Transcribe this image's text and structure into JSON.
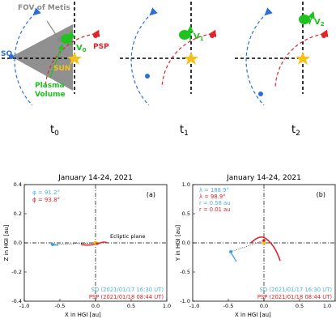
{
  "colors": {
    "sun": "#f2c21b",
    "so": "#2a6fd6",
    "psp": "#e0242a",
    "plasma": "#1fc21f",
    "fov": "#8a8a8a",
    "axis": "#000000"
  },
  "top": {
    "fov_label": "FOV of Metis",
    "so_label": "SO",
    "psp_label": "PSP",
    "sun_label": "SUN",
    "plasma_label_1": "Plasma",
    "plasma_label_2": "Volume",
    "v0_label": "V",
    "v0_sub": "0",
    "v1_label": "V",
    "v1_sub": "1",
    "v2_label": "V",
    "v2_sub": "2",
    "time_labels": [
      {
        "main": "t",
        "sub": "0"
      },
      {
        "main": "t",
        "sub": "1"
      },
      {
        "main": "t",
        "sub": "2"
      }
    ]
  },
  "panel_a": {
    "title": "January 14-24, 2021",
    "letter": "(a)",
    "phi_label": "φ = 91.2°",
    "theta_label": "ϕ = 93.8°",
    "ecliptic_label": "Ecliptic plane",
    "xlabel": "X in HGI [au]",
    "ylabel": "Z in HGI [au]",
    "xticks": [
      "-1.0",
      "-0.5",
      "0.0",
      "0.5",
      "1.0"
    ],
    "yticks": [
      "-0.4",
      "-0.2",
      "0.0",
      "0.2",
      "0.4"
    ],
    "legend_so": "SO (2021/01/17 16:30 UT)",
    "legend_psp": "PSP (2021/01/18 08:44 UT)"
  },
  "panel_b": {
    "title": "January 14-24, 2021",
    "letter": "(b)",
    "lambda_so": "λ = 188.9°",
    "lambda_psp": "λ = 98.9°",
    "r_so": "r = 0.58 au",
    "r_psp": "r = 0.01 au",
    "xlabel": "X in HGI [au]",
    "ylabel": "Y in HGI [au]",
    "xticks": [
      "-1.0",
      "-0.5",
      "0.0",
      "0.5",
      "1.0"
    ],
    "yticks": [
      "-1.0",
      "-0.5",
      "0.0",
      "0.5",
      "1.0"
    ],
    "legend_so": "SO (2021/01/17 16:30 UT)",
    "legend_psp": "PSP (2021/01/18 08:44 UT)"
  }
}
